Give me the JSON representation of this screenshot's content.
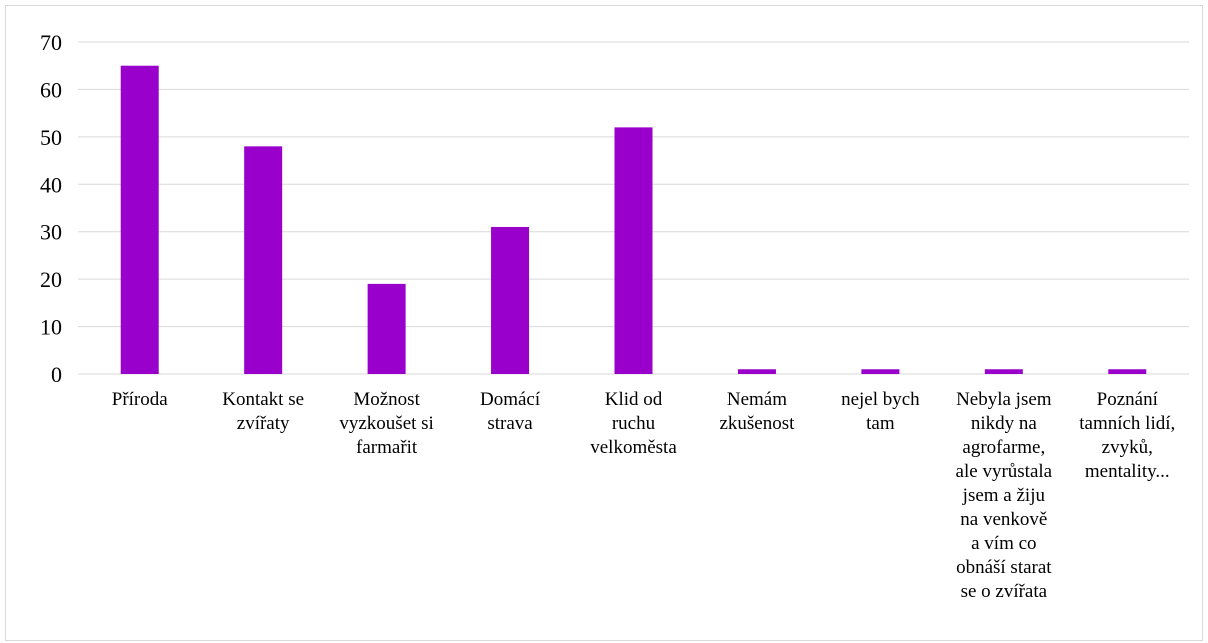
{
  "chart_data": {
    "type": "bar",
    "categories": [
      "Příroda",
      "Kontakt se zvířaty",
      "Možnost vyzkoušet si farmařit",
      "Domácí strava",
      "Klid od ruchu velkoměsta",
      "Nemám zkušenost",
      "nejel bych tam",
      "Nebyla jsem nikdy na agrofarme, ale vyrůstala jsem a žiju na venkově a vím co obnáší starat se o zvířata",
      "Poznání tamních lidí, zvyků, mentality..."
    ],
    "category_lines": [
      [
        "Příroda"
      ],
      [
        "Kontakt se",
        "zvířaty"
      ],
      [
        "Možnost",
        "vyzkoušet si",
        "farmařit"
      ],
      [
        "Domácí",
        "strava"
      ],
      [
        "Klid od",
        "ruchu",
        "velkoměsta"
      ],
      [
        "Nemám",
        "zkušenost"
      ],
      [
        "nejel bych",
        "tam"
      ],
      [
        "Nebyla jsem",
        "nikdy na",
        "agrofarme,",
        "ale vyrůstala",
        "jsem a žiju",
        "na venkově",
        "a vím co",
        "obnáší starat",
        "se o zvířata"
      ],
      [
        "Poznání",
        "tamních lidí,",
        "zvyků,",
        "mentality..."
      ]
    ],
    "values": [
      65,
      48,
      19,
      31,
      52,
      1,
      1,
      1,
      1
    ],
    "title": "",
    "xlabel": "",
    "ylabel": "",
    "ylim": [
      0,
      70
    ],
    "yticks": [
      0,
      10,
      20,
      30,
      40,
      50,
      60,
      70
    ],
    "grid": true,
    "legend": "none",
    "bar_color": "#9900cc",
    "grid_color": "#d9d9d9"
  }
}
